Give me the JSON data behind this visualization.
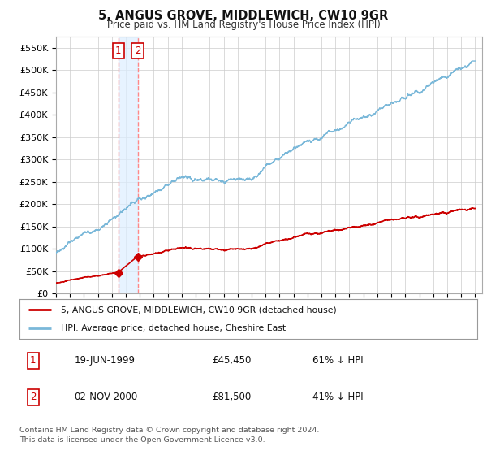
{
  "title": "5, ANGUS GROVE, MIDDLEWICH, CW10 9GR",
  "subtitle": "Price paid vs. HM Land Registry's House Price Index (HPI)",
  "ylabel_ticks": [
    0,
    50000,
    100000,
    150000,
    200000,
    250000,
    300000,
    350000,
    400000,
    450000,
    500000,
    550000
  ],
  "ylabel_labels": [
    "£0",
    "£50K",
    "£100K",
    "£150K",
    "£200K",
    "£250K",
    "£300K",
    "£350K",
    "£400K",
    "£450K",
    "£500K",
    "£550K"
  ],
  "ylim": [
    0,
    575000
  ],
  "xlim_start": 1995.0,
  "xlim_end": 2025.5,
  "hpi_color": "#7ab8d9",
  "price_color": "#cc0000",
  "marker_color": "#cc0000",
  "vline_color": "#ff8888",
  "vshade_color": "#ddeeff",
  "sale1_x": 1999.46,
  "sale1_y": 45450,
  "sale2_x": 2000.84,
  "sale2_y": 81500,
  "legend_line1": "5, ANGUS GROVE, MIDDLEWICH, CW10 9GR (detached house)",
  "legend_line2": "HPI: Average price, detached house, Cheshire East",
  "table_row1_date": "19-JUN-1999",
  "table_row1_price": "£45,450",
  "table_row1_hpi": "61% ↓ HPI",
  "table_row2_date": "02-NOV-2000",
  "table_row2_price": "£81,500",
  "table_row2_hpi": "41% ↓ HPI",
  "footnote": "Contains HM Land Registry data © Crown copyright and database right 2024.\nThis data is licensed under the Open Government Licence v3.0.",
  "background_color": "#ffffff",
  "grid_color": "#cccccc"
}
